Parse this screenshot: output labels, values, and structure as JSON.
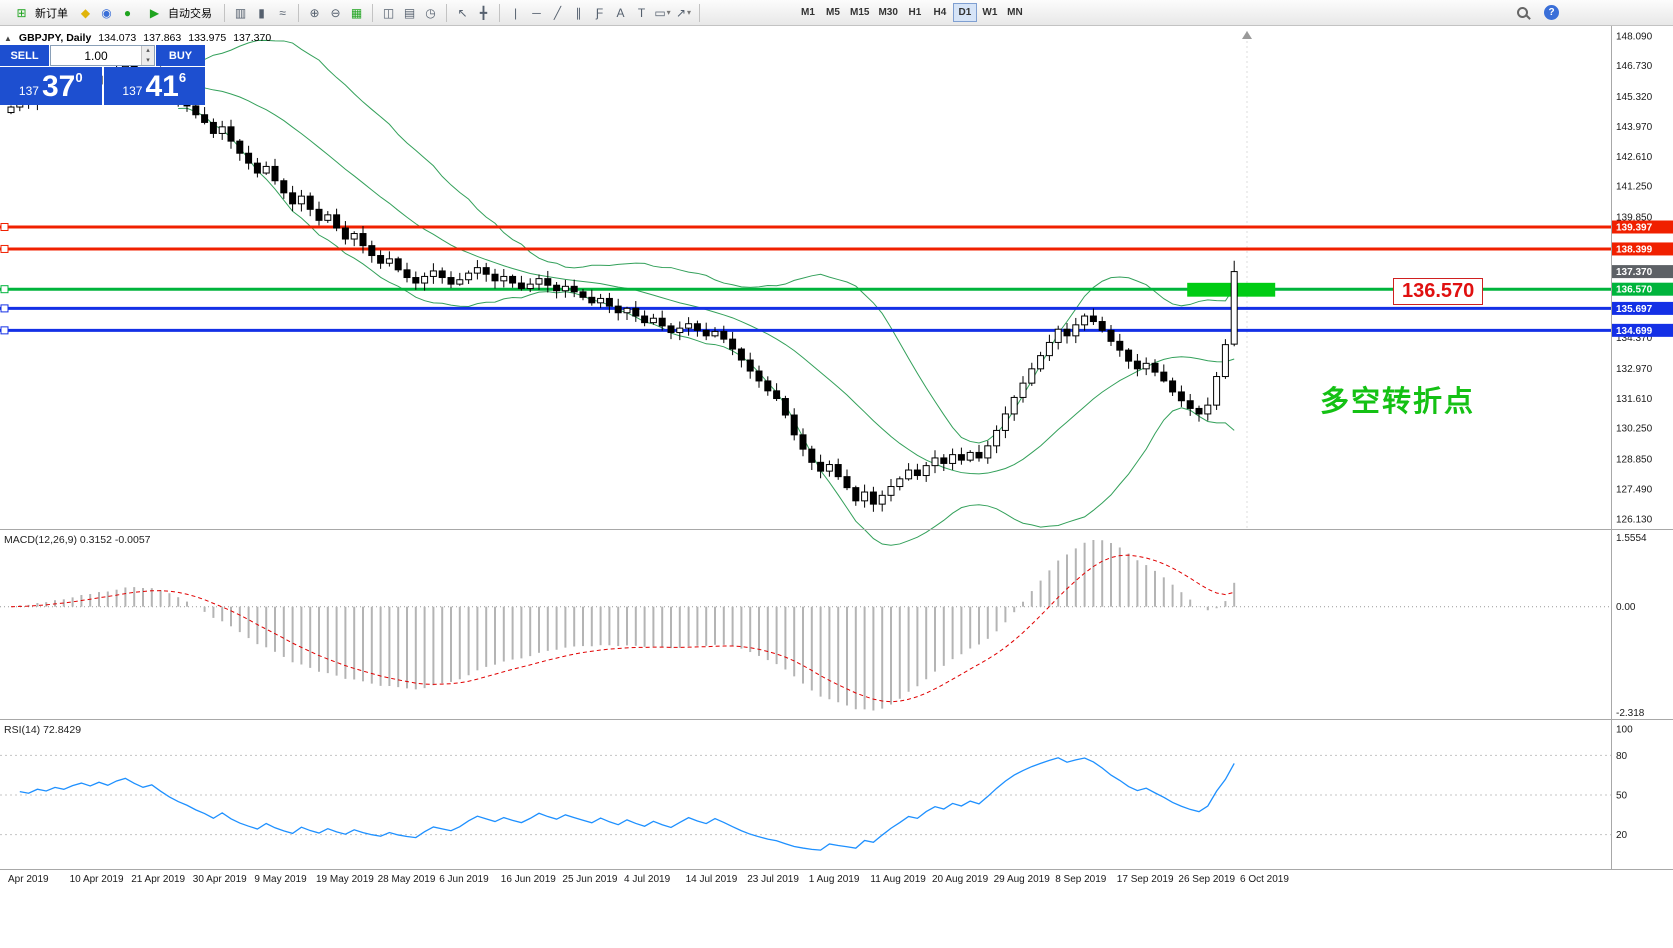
{
  "toolbar": {
    "new_order_label": "新订单",
    "autotrade_label": "自动交易",
    "timeframes": [
      "M1",
      "M5",
      "M15",
      "M30",
      "H1",
      "H4",
      "D1",
      "W1",
      "MN"
    ],
    "active_timeframe": "D1"
  },
  "icons": {
    "new_order": "⊞",
    "metaeditor": "◆",
    "market": "◉",
    "signals": "●",
    "autotrade": "▶",
    "bars": "▥",
    "candles": "▮",
    "line": "≈",
    "zoom_in": "⊕",
    "zoom_out": "⊖",
    "indicators": "▦",
    "tile": "◫",
    "template": "▤",
    "clock": "◷",
    "cursor": "↖",
    "crosshair": "╋",
    "vline": "|",
    "hline": "─",
    "trendline": "╱",
    "channel": "∥",
    "fibonacci": "Ƒ",
    "text": "A",
    "label": "T",
    "shape": "▭",
    "arrowtool": "↗",
    "caret": "▾",
    "collapse": "▲",
    "spin_up": "▴",
    "spin_down": "▾",
    "help": "?"
  },
  "chart": {
    "symbol_period": "GBPJPY, Daily",
    "open": "134.073",
    "high": "137.863",
    "low": "133.975",
    "close": "137.370"
  },
  "trade_panel": {
    "sell_label": "SELL",
    "buy_label": "BUY",
    "volume": "1.00",
    "sell_price_main": "137",
    "sell_price_big": "37",
    "sell_price_sup": "0",
    "buy_price_main": "137",
    "buy_price_big": "41",
    "buy_price_sup": "6"
  },
  "indicator_labels": {
    "macd": "MACD(12,26,9) 0.3152 -0.0057",
    "rsi": "RSI(14) 72.8429"
  },
  "callout": {
    "text": "136.570"
  },
  "annotation": {
    "text": "多空转折点"
  },
  "chart_data": {
    "type": "candlestick",
    "symbol": "GBPJPY",
    "timeframe": "Daily",
    "closes": [
      144.85,
      145.2,
      145.05,
      145.45,
      145.3,
      145.65,
      145.5,
      145.85,
      146.1,
      145.9,
      146.25,
      146.05,
      146.45,
      146.7,
      146.4,
      146.15,
      146.35,
      145.95,
      145.55,
      145.2,
      144.9,
      144.5,
      144.15,
      143.65,
      143.95,
      143.3,
      142.75,
      142.3,
      141.85,
      142.15,
      141.5,
      140.95,
      140.45,
      140.8,
      140.2,
      139.7,
      139.95,
      139.35,
      138.85,
      139.1,
      138.55,
      138.1,
      137.75,
      137.95,
      137.45,
      137.1,
      136.85,
      137.15,
      137.4,
      137.1,
      136.8,
      137.0,
      137.3,
      137.55,
      137.25,
      136.95,
      137.15,
      136.85,
      136.6,
      136.8,
      137.05,
      136.75,
      136.5,
      136.7,
      136.45,
      136.2,
      135.95,
      136.15,
      135.8,
      135.5,
      135.7,
      135.35,
      135.05,
      135.25,
      134.9,
      134.6,
      134.8,
      135.0,
      134.7,
      134.45,
      134.65,
      134.3,
      133.85,
      133.35,
      132.85,
      132.4,
      131.95,
      131.6,
      130.85,
      129.95,
      129.3,
      128.7,
      128.3,
      128.6,
      128.05,
      127.55,
      126.95,
      127.35,
      126.8,
      127.2,
      127.6,
      127.95,
      128.35,
      128.1,
      128.55,
      128.9,
      128.65,
      129.05,
      128.8,
      129.15,
      128.9,
      129.45,
      130.15,
      130.9,
      131.65,
      132.3,
      132.95,
      133.55,
      134.15,
      134.75,
      134.45,
      134.95,
      135.35,
      135.1,
      134.7,
      134.2,
      133.8,
      133.3,
      132.95,
      133.2,
      132.8,
      132.4,
      131.9,
      131.5,
      131.15,
      130.9,
      131.3,
      132.6,
      134.05,
      137.37
    ],
    "last_candle": {
      "open": 134.073,
      "high": 137.863,
      "low": 133.975,
      "close": 137.37
    },
    "price_ticks": [
      "148.090",
      "146.730",
      "145.320",
      "143.970",
      "142.610",
      "141.250",
      "139.850",
      "134.370",
      "132.970",
      "131.610",
      "130.250",
      "128.850",
      "127.490",
      "126.130"
    ],
    "levels": [
      {
        "value": 139.397,
        "label": "139.397",
        "color": "#F02000"
      },
      {
        "value": 138.399,
        "label": "138.399",
        "color": "#F02000"
      },
      {
        "value": 136.57,
        "label": "136.570",
        "color": "#00B43C"
      },
      {
        "value": 135.697,
        "label": "135.697",
        "color": "#1430E6"
      },
      {
        "value": 134.699,
        "label": "134.699",
        "color": "#1430E6"
      }
    ],
    "current_price": {
      "value": 137.37,
      "label": "137.370",
      "badge_color": "#5d6166"
    },
    "highlight_box": {
      "start_index": 134,
      "end_index": 144,
      "price_top": 136.86,
      "price_bottom": 136.23,
      "color": "#00CC14"
    },
    "indicators": {
      "bollinger": {
        "period": 20,
        "deviation": 2
      },
      "macd": {
        "fast": 12,
        "slow": 26,
        "signal": 9,
        "value": 0.3152,
        "signal_value": -0.0057
      },
      "rsi": {
        "period": 14,
        "value": 72.8429
      }
    },
    "macd_range": [
      1.5554,
      -2.318
    ],
    "macd_axis": [
      {
        "label": "1.5554",
        "v": 1.5554
      },
      {
        "label": "0.00",
        "v": 0
      },
      {
        "label": "-2.318",
        "v": -2.318
      }
    ],
    "rsi_axis": [
      {
        "label": "100",
        "v": 100
      },
      {
        "label": "80",
        "v": 80
      },
      {
        "label": "50",
        "v": 50
      },
      {
        "label": "20",
        "v": 20
      }
    ],
    "dates": [
      "Apr 2019",
      "10 Apr 2019",
      "21 Apr 2019",
      "30 Apr 2019",
      "9 May 2019",
      "19 May 2019",
      "28 May 2019",
      "6 Jun 2019",
      "16 Jun 2019",
      "25 Jun 2019",
      "4 Jul 2019",
      "14 Jul 2019",
      "23 Jul 2019",
      "1 Aug 2019",
      "11 Aug 2019",
      "20 Aug 2019",
      "29 Aug 2019",
      "8 Sep 2019",
      "17 Sep 2019",
      "26 Sep 2019",
      "6 Oct 2019"
    ],
    "colors": {
      "bollinger": "#33A05A",
      "rsi": "#1E90FF",
      "macd_signal": "#E00000",
      "macd_histogram": "#B4B4B4",
      "candle_up": "#FFFFFF",
      "candle_down": "#000000"
    }
  }
}
